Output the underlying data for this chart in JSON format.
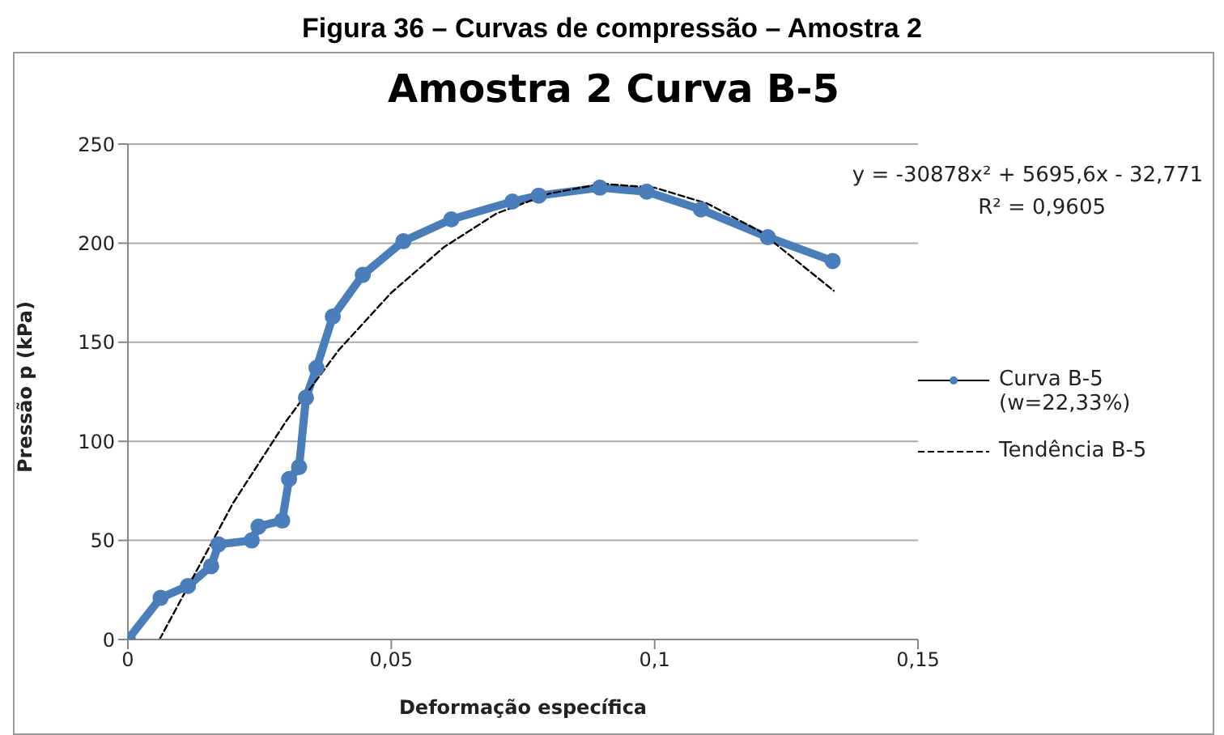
{
  "chart_data": {
    "type": "line",
    "title": "Amostra 2 Curva B-5",
    "xlabel": "Deformação específica",
    "ylabel": "Pressão  p (kPa)",
    "annotations": [
      "Figura 36 – Curvas de compressão – Amostra 2",
      "y = -30878x² + 5695,6x - 32,771",
      "R² = 0,9605"
    ],
    "series": [
      {
        "name": "Curva B-5 (w=22,33%)",
        "color": "#4a7ebb",
        "marker": "circle",
        "line_style": "solid",
        "x": [
          0,
          0.0062,
          0.0114,
          0.0158,
          0.0172,
          0.0235,
          0.0248,
          0.0293,
          0.0306,
          0.0325,
          0.0338,
          0.0358,
          0.0389,
          0.0446,
          0.0523,
          0.0614,
          0.073,
          0.078,
          0.0896,
          0.0985,
          0.1088,
          0.1215,
          0.1338
        ],
        "values": [
          0,
          21,
          27,
          37,
          48,
          50,
          57,
          60,
          81,
          87,
          122,
          137,
          163,
          184,
          201,
          212,
          221,
          224,
          228,
          226,
          217,
          203,
          191
        ]
      },
      {
        "name": "Tendência B-5",
        "color": "#000000",
        "marker": "none",
        "line_style": "dashed",
        "x": [
          0.006,
          0.02,
          0.03,
          0.04,
          0.05,
          0.06,
          0.07,
          0.08,
          0.09,
          0.1,
          0.11,
          0.12,
          0.134
        ],
        "values": [
          0,
          69,
          110,
          146,
          175,
          198,
          215,
          225,
          230,
          228,
          220,
          206,
          176
        ]
      }
    ],
    "xlim": [
      0,
      0.15
    ],
    "xticks": [
      0,
      {
        "value": 0.05,
        "label": "0,05"
      },
      {
        "value": 0.1,
        "label": "0,1"
      },
      {
        "value": 0.15,
        "label": "0,15"
      }
    ],
    "ylim": [
      0,
      250
    ],
    "yticks": [
      0,
      50,
      100,
      150,
      200,
      250
    ],
    "grid": "y",
    "legend": "right"
  }
}
